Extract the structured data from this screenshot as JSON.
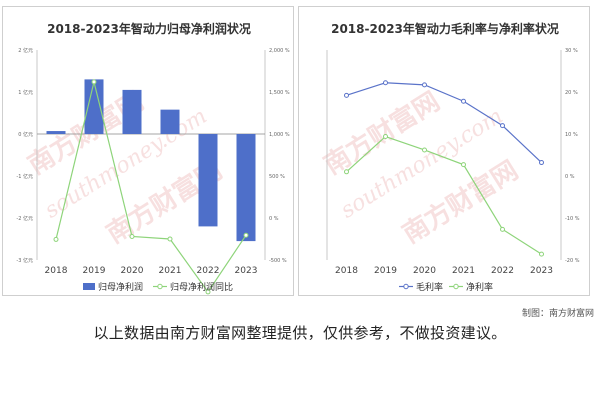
{
  "chart_data": [
    {
      "type": "bar",
      "title": "2018-2023年智动力归母净利润状况",
      "categories": [
        "2018",
        "2019",
        "2020",
        "2021",
        "2022",
        "2023"
      ],
      "y_ticks_left": [
        "2 亿元",
        "1 亿元",
        "0 亿元",
        "-1 亿元",
        "-2 亿元",
        "-3 亿元"
      ],
      "y_ticks_right": [
        "2,000 %",
        "1,500 %",
        "1,000 %",
        "500 %",
        "0 %",
        "-500 %"
      ],
      "ylim_left": [
        -3,
        2
      ],
      "ylim_right": [
        -500,
        2000
      ],
      "series": [
        {
          "name": "归母净利润",
          "kind": "bar",
          "axis": "left",
          "color": "#4e6fc9",
          "values": [
            0.07,
            1.3,
            1.05,
            0.58,
            -2.2,
            -2.55
          ]
        },
        {
          "name": "归母净利润同比",
          "kind": "line",
          "axis": "right",
          "color": "#8ed47a",
          "values": [
            -255,
            1620,
            -220,
            -250,
            -880,
            -205
          ]
        }
      ],
      "grid": false,
      "legend_position": "bottom"
    },
    {
      "type": "line",
      "title": "2018-2023年智动力毛利率与净利率状况",
      "categories": [
        "2018",
        "2019",
        "2020",
        "2021",
        "2022",
        "2023"
      ],
      "y_ticks": [
        "30 %",
        "20 %",
        "10 %",
        "0 %",
        "-10 %",
        "-20 %"
      ],
      "ylim": [
        -20,
        30
      ],
      "series": [
        {
          "name": "毛利率",
          "color": "#5a73c9",
          "values": [
            19.2,
            22.2,
            21.7,
            17.8,
            12.0,
            3.2
          ]
        },
        {
          "name": "净利率",
          "color": "#8ed47a",
          "values": [
            1.0,
            9.4,
            6.2,
            2.7,
            -12.7,
            -18.6
          ]
        }
      ],
      "grid": false,
      "legend_position": "bottom"
    }
  ],
  "watermark": {
    "cn": "南方财富网",
    "en": "southmoney.com"
  },
  "footer": {
    "credit": "制图：南方财富网",
    "disclaimer": "以上数据由南方财富网整理提供，仅供参考，不做投资建议。"
  }
}
